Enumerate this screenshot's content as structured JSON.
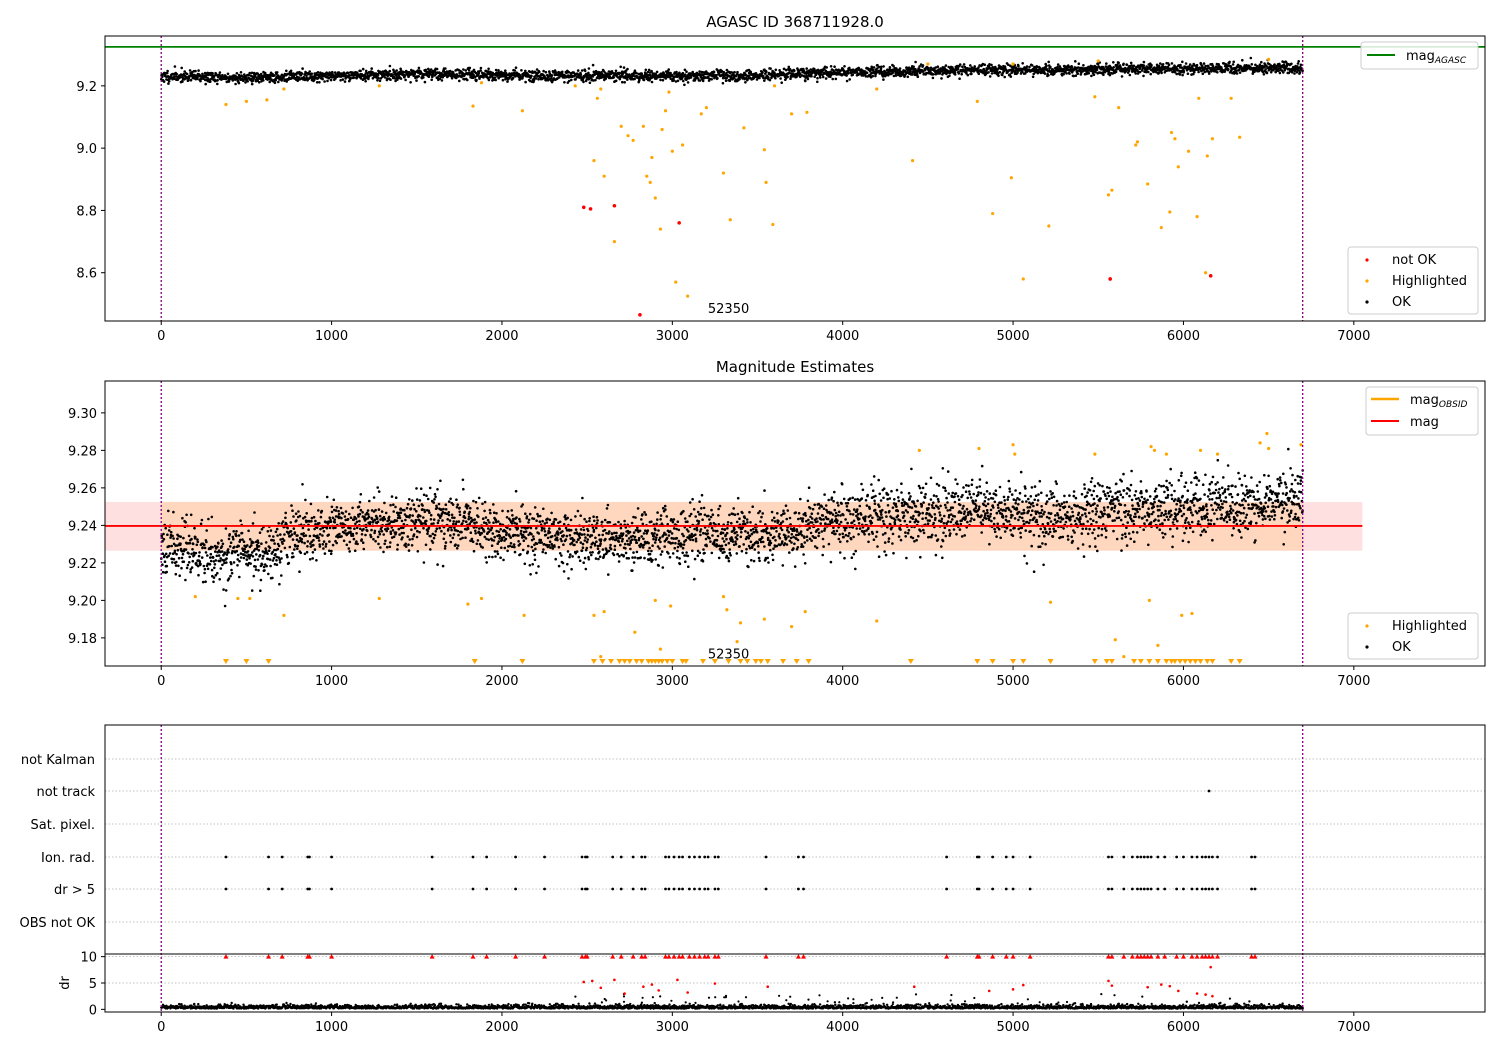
{
  "chart_data": [
    {
      "type": "scatter",
      "title": "AGASC ID 368711928.0",
      "xlim": [
        -330,
        7770
      ],
      "ylim": [
        8.445,
        9.36
      ],
      "yticks": [
        9.2,
        9.0,
        8.8,
        8.6
      ],
      "ytick_labels": [
        "9.2",
        "9.0",
        "8.8",
        "8.6"
      ],
      "xticks": [
        0,
        1000,
        2000,
        3000,
        4000,
        5000,
        6000,
        7000
      ],
      "xtick_labels": [
        "0",
        "1000",
        "2000",
        "3000",
        "4000",
        "5000",
        "6000",
        "7000"
      ],
      "vlines": [
        0,
        6700
      ],
      "hline": {
        "y": 9.325,
        "color": "#008000"
      },
      "annotation": {
        "text": "52350",
        "x": 3330,
        "y": 8.47
      },
      "legend_top": {
        "label": "mag",
        "subscript": "AGASC",
        "color": "#008000"
      },
      "legend_bottom": [
        {
          "label": "not OK",
          "color": "#ff0000"
        },
        {
          "label": "Highlighted",
          "color": "#ffa500"
        },
        {
          "label": "OK",
          "color": "#000000"
        }
      ],
      "ok_band": [
        {
          "x": 0,
          "y": 9.23
        },
        {
          "x": 200,
          "y": 9.23
        },
        {
          "x": 400,
          "y": 9.225
        },
        {
          "x": 700,
          "y": 9.228
        },
        {
          "x": 1000,
          "y": 9.233
        },
        {
          "x": 1600,
          "y": 9.238
        },
        {
          "x": 2400,
          "y": 9.233
        },
        {
          "x": 3000,
          "y": 9.232
        },
        {
          "x": 3500,
          "y": 9.232
        },
        {
          "x": 3800,
          "y": 9.24
        },
        {
          "x": 4200,
          "y": 9.245
        },
        {
          "x": 4800,
          "y": 9.25
        },
        {
          "x": 5400,
          "y": 9.252
        },
        {
          "x": 6000,
          "y": 9.255
        },
        {
          "x": 6700,
          "y": 9.258
        }
      ],
      "not_ok": [
        {
          "x": 2480,
          "y": 8.81
        },
        {
          "x": 2520,
          "y": 8.805
        },
        {
          "x": 2660,
          "y": 8.815
        },
        {
          "x": 3040,
          "y": 8.76
        },
        {
          "x": 2810,
          "y": 8.465
        },
        {
          "x": 5570,
          "y": 8.58
        },
        {
          "x": 6160,
          "y": 8.59
        }
      ],
      "highlighted": [
        {
          "x": 380,
          "y": 9.14
        },
        {
          "x": 500,
          "y": 9.15
        },
        {
          "x": 620,
          "y": 9.155
        },
        {
          "x": 720,
          "y": 9.19
        },
        {
          "x": 1280,
          "y": 9.2
        },
        {
          "x": 1830,
          "y": 9.135
        },
        {
          "x": 1880,
          "y": 9.21
        },
        {
          "x": 2120,
          "y": 9.12
        },
        {
          "x": 2430,
          "y": 9.2
        },
        {
          "x": 2540,
          "y": 8.96
        },
        {
          "x": 2580,
          "y": 9.19
        },
        {
          "x": 2600,
          "y": 8.91
        },
        {
          "x": 2660,
          "y": 8.7
        },
        {
          "x": 2700,
          "y": 9.07
        },
        {
          "x": 2740,
          "y": 9.04
        },
        {
          "x": 2770,
          "y": 9.025
        },
        {
          "x": 2830,
          "y": 9.07
        },
        {
          "x": 2850,
          "y": 8.91
        },
        {
          "x": 2870,
          "y": 8.89
        },
        {
          "x": 2880,
          "y": 8.97
        },
        {
          "x": 2900,
          "y": 8.84
        },
        {
          "x": 2930,
          "y": 8.74
        },
        {
          "x": 2940,
          "y": 9.06
        },
        {
          "x": 2960,
          "y": 9.12
        },
        {
          "x": 2980,
          "y": 9.18
        },
        {
          "x": 3000,
          "y": 8.99
        },
        {
          "x": 3020,
          "y": 8.57
        },
        {
          "x": 3060,
          "y": 9.01
        },
        {
          "x": 3090,
          "y": 8.525
        },
        {
          "x": 3170,
          "y": 9.11
        },
        {
          "x": 3300,
          "y": 8.92
        },
        {
          "x": 3340,
          "y": 8.77
        },
        {
          "x": 3420,
          "y": 9.065
        },
        {
          "x": 3540,
          "y": 8.995
        },
        {
          "x": 3550,
          "y": 8.89
        },
        {
          "x": 3590,
          "y": 8.755
        },
        {
          "x": 3700,
          "y": 9.11
        },
        {
          "x": 3790,
          "y": 9.115
        },
        {
          "x": 4410,
          "y": 8.96
        },
        {
          "x": 4790,
          "y": 9.15
        },
        {
          "x": 4880,
          "y": 8.79
        },
        {
          "x": 4990,
          "y": 8.905
        },
        {
          "x": 5060,
          "y": 8.58
        },
        {
          "x": 5210,
          "y": 8.75
        },
        {
          "x": 5480,
          "y": 9.165
        },
        {
          "x": 5560,
          "y": 8.85
        },
        {
          "x": 5580,
          "y": 8.865
        },
        {
          "x": 5620,
          "y": 9.13
        },
        {
          "x": 5720,
          "y": 9.01
        },
        {
          "x": 5730,
          "y": 9.02
        },
        {
          "x": 5790,
          "y": 8.885
        },
        {
          "x": 5870,
          "y": 8.745
        },
        {
          "x": 5920,
          "y": 8.795
        },
        {
          "x": 5930,
          "y": 9.05
        },
        {
          "x": 5950,
          "y": 9.03
        },
        {
          "x": 5970,
          "y": 8.94
        },
        {
          "x": 6030,
          "y": 8.99
        },
        {
          "x": 6080,
          "y": 8.78
        },
        {
          "x": 6090,
          "y": 9.16
        },
        {
          "x": 6130,
          "y": 8.6
        },
        {
          "x": 6140,
          "y": 8.975
        },
        {
          "x": 6170,
          "y": 9.03
        },
        {
          "x": 6280,
          "y": 9.16
        },
        {
          "x": 6330,
          "y": 9.035
        },
        {
          "x": 2560,
          "y": 9.16
        },
        {
          "x": 3200,
          "y": 9.13
        },
        {
          "x": 3600,
          "y": 9.2
        },
        {
          "x": 4200,
          "y": 9.19
        },
        {
          "x": 4500,
          "y": 9.27
        },
        {
          "x": 5000,
          "y": 9.27
        },
        {
          "x": 5500,
          "y": 9.28
        },
        {
          "x": 6500,
          "y": 9.285
        }
      ]
    },
    {
      "type": "scatter",
      "title": "Magnitude Estimates",
      "xlim": [
        -330,
        7770
      ],
      "ylim": [
        9.165,
        9.317
      ],
      "yticks": [
        9.3,
        9.28,
        9.26,
        9.24,
        9.22,
        9.2,
        9.18
      ],
      "ytick_labels": [
        "9.30",
        "9.28",
        "9.26",
        "9.24",
        "9.22",
        "9.20",
        "9.18"
      ],
      "xticks": [
        0,
        1000,
        2000,
        3000,
        4000,
        5000,
        6000,
        7000
      ],
      "xtick_labels": [
        "0",
        "1000",
        "2000",
        "3000",
        "4000",
        "5000",
        "6000",
        "7000"
      ],
      "vlines": [
        0,
        6700
      ],
      "mean_mag": 9.2397,
      "mag_band": [
        9.2265,
        9.2525
      ],
      "obsid_band": {
        "x_range": [
          0,
          6700
        ],
        "y_range": [
          9.2265,
          9.2525
        ]
      },
      "annotation": {
        "text": "52350",
        "x": 3330,
        "y": 9.169
      },
      "legend_top": [
        {
          "label": "mag",
          "subscript": "OBSID",
          "color": "#ffa500"
        },
        {
          "label": "mag",
          "subscript": "",
          "color": "#ff0000"
        }
      ],
      "legend_bottom": [
        {
          "label": "Highlighted",
          "color": "#ffa500"
        },
        {
          "label": "OK",
          "color": "#000000"
        }
      ],
      "ok_band": [
        {
          "x": 0,
          "y": 9.232
        },
        {
          "x": 200,
          "y": 9.226
        },
        {
          "x": 400,
          "y": 9.224
        },
        {
          "x": 600,
          "y": 9.226
        },
        {
          "x": 800,
          "y": 9.236
        },
        {
          "x": 1000,
          "y": 9.238
        },
        {
          "x": 1300,
          "y": 9.241
        },
        {
          "x": 1600,
          "y": 9.243
        },
        {
          "x": 2000,
          "y": 9.236
        },
        {
          "x": 2400,
          "y": 9.234
        },
        {
          "x": 2800,
          "y": 9.232
        },
        {
          "x": 3200,
          "y": 9.235
        },
        {
          "x": 3600,
          "y": 9.234
        },
        {
          "x": 4000,
          "y": 9.244
        },
        {
          "x": 4400,
          "y": 9.246
        },
        {
          "x": 4800,
          "y": 9.25
        },
        {
          "x": 5200,
          "y": 9.244
        },
        {
          "x": 5600,
          "y": 9.249
        },
        {
          "x": 6000,
          "y": 9.248
        },
        {
          "x": 6400,
          "y": 9.252
        },
        {
          "x": 6700,
          "y": 9.255
        }
      ],
      "highlighted": [
        {
          "x": 200,
          "y": 9.202
        },
        {
          "x": 450,
          "y": 9.201
        },
        {
          "x": 520,
          "y": 9.201
        },
        {
          "x": 720,
          "y": 9.192
        },
        {
          "x": 1280,
          "y": 9.201
        },
        {
          "x": 1800,
          "y": 9.198
        },
        {
          "x": 1880,
          "y": 9.201
        },
        {
          "x": 2130,
          "y": 9.192
        },
        {
          "x": 2540,
          "y": 9.192
        },
        {
          "x": 2580,
          "y": 9.17
        },
        {
          "x": 2600,
          "y": 9.194
        },
        {
          "x": 2780,
          "y": 9.183
        },
        {
          "x": 2900,
          "y": 9.2
        },
        {
          "x": 2930,
          "y": 9.174
        },
        {
          "x": 2990,
          "y": 9.197
        },
        {
          "x": 3300,
          "y": 9.202
        },
        {
          "x": 3320,
          "y": 9.195
        },
        {
          "x": 3380,
          "y": 9.178
        },
        {
          "x": 3400,
          "y": 9.188
        },
        {
          "x": 3540,
          "y": 9.19
        },
        {
          "x": 3700,
          "y": 9.186
        },
        {
          "x": 3780,
          "y": 9.194
        },
        {
          "x": 4200,
          "y": 9.189
        },
        {
          "x": 4450,
          "y": 9.28
        },
        {
          "x": 4800,
          "y": 9.281
        },
        {
          "x": 5000,
          "y": 9.283
        },
        {
          "x": 5010,
          "y": 9.278
        },
        {
          "x": 5220,
          "y": 9.199
        },
        {
          "x": 5480,
          "y": 9.278
        },
        {
          "x": 5600,
          "y": 9.179
        },
        {
          "x": 5650,
          "y": 9.17
        },
        {
          "x": 5800,
          "y": 9.2
        },
        {
          "x": 5810,
          "y": 9.282
        },
        {
          "x": 5830,
          "y": 9.28
        },
        {
          "x": 5850,
          "y": 9.176
        },
        {
          "x": 5900,
          "y": 9.278
        },
        {
          "x": 5990,
          "y": 9.192
        },
        {
          "x": 6050,
          "y": 9.193
        },
        {
          "x": 6100,
          "y": 9.28
        },
        {
          "x": 6200,
          "y": 9.278
        },
        {
          "x": 6450,
          "y": 9.284
        },
        {
          "x": 6490,
          "y": 9.289
        },
        {
          "x": 6500,
          "y": 9.281
        },
        {
          "x": 6690,
          "y": 9.283
        }
      ],
      "off_scale_markers": [
        380,
        500,
        630,
        1840,
        2120,
        2540,
        2590,
        2640,
        2690,
        2720,
        2750,
        2790,
        2820,
        2860,
        2880,
        2900,
        2920,
        2940,
        2970,
        3000,
        3060,
        3080,
        3180,
        3250,
        3330,
        3400,
        3440,
        3490,
        3520,
        3560,
        3650,
        3730,
        3800,
        4400,
        4790,
        4880,
        5000,
        5060,
        5220,
        5480,
        5550,
        5580,
        5710,
        5750,
        5800,
        5850,
        5900,
        5930,
        5950,
        5980,
        6010,
        6040,
        6070,
        6100,
        6140,
        6170,
        6280,
        6330
      ]
    },
    {
      "type": "scatter",
      "title": "",
      "xlim": [
        -330,
        7770
      ],
      "categories": [
        "not Kalman",
        "not track",
        "Sat. pixel.",
        "Ion. rad.",
        "dr > 5",
        "OBS not OK"
      ],
      "xticks": [
        0,
        1000,
        2000,
        3000,
        4000,
        5000,
        6000,
        7000
      ],
      "xtick_labels": [
        "0",
        "1000",
        "2000",
        "3000",
        "4000",
        "5000",
        "6000",
        "7000"
      ],
      "vlines": [
        0,
        6700
      ],
      "flags": {
        "not_track": [
          6150
        ],
        "ion_rad": [
          380,
          630,
          710,
          860,
          870,
          1000,
          1590,
          1830,
          1910,
          2080,
          2250,
          2470,
          2490,
          2500,
          2650,
          2700,
          2770,
          2820,
          2840,
          2960,
          2980,
          3010,
          3040,
          3060,
          3100,
          3130,
          3160,
          3190,
          3210,
          3250,
          3270,
          3550,
          3740,
          3770,
          4610,
          4790,
          4800,
          4880,
          4960,
          5000,
          5100,
          5560,
          5580,
          5650,
          5700,
          5730,
          5750,
          5770,
          5790,
          5810,
          5850,
          5890,
          5960,
          6000,
          6050,
          6080,
          6110,
          6130,
          6150,
          6170,
          6200,
          6400,
          6420
        ]
      },
      "dr": {
        "ylim": [
          -0.5,
          10.5
        ],
        "ylabel": "dr",
        "yticks": [
          10,
          5,
          0
        ],
        "ytick_labels": [
          "10",
          "5",
          "0"
        ],
        "capped": [
          380,
          630,
          710,
          860,
          870,
          1000,
          1590,
          1830,
          1910,
          2080,
          2250,
          2470,
          2490,
          2500,
          2650,
          2700,
          2770,
          2820,
          2840,
          2960,
          2980,
          3010,
          3040,
          3060,
          3100,
          3130,
          3160,
          3190,
          3210,
          3250,
          3270,
          3550,
          3740,
          3770,
          4610,
          4790,
          4800,
          4880,
          4960,
          5000,
          5100,
          5560,
          5580,
          5650,
          5700,
          5730,
          5750,
          5770,
          5790,
          5810,
          5850,
          5890,
          5960,
          6000,
          6050,
          6080,
          6110,
          6130,
          6150,
          6170,
          6200,
          6400,
          6420
        ],
        "mid_red": [
          {
            "x": 2480,
            "y": 5.2
          },
          {
            "x": 2530,
            "y": 5.4
          },
          {
            "x": 2580,
            "y": 4.1
          },
          {
            "x": 2660,
            "y": 5.6
          },
          {
            "x": 2720,
            "y": 3.0
          },
          {
            "x": 2830,
            "y": 4.3
          },
          {
            "x": 2880,
            "y": 4.7
          },
          {
            "x": 2920,
            "y": 3.6
          },
          {
            "x": 3030,
            "y": 5.6
          },
          {
            "x": 3090,
            "y": 3.2
          },
          {
            "x": 3250,
            "y": 4.9
          },
          {
            "x": 3560,
            "y": 4.3
          },
          {
            "x": 4420,
            "y": 4.3
          },
          {
            "x": 4860,
            "y": 3.5
          },
          {
            "x": 5000,
            "y": 3.8
          },
          {
            "x": 5060,
            "y": 4.6
          },
          {
            "x": 5560,
            "y": 5.4
          },
          {
            "x": 5580,
            "y": 4.5
          },
          {
            "x": 5790,
            "y": 4.2
          },
          {
            "x": 5870,
            "y": 4.7
          },
          {
            "x": 5920,
            "y": 4.4
          },
          {
            "x": 5970,
            "y": 3.5
          },
          {
            "x": 6080,
            "y": 3.0
          },
          {
            "x": 6130,
            "y": 2.8
          },
          {
            "x": 6160,
            "y": 8.0
          },
          {
            "x": 6170,
            "y": 2.5
          }
        ]
      }
    }
  ]
}
